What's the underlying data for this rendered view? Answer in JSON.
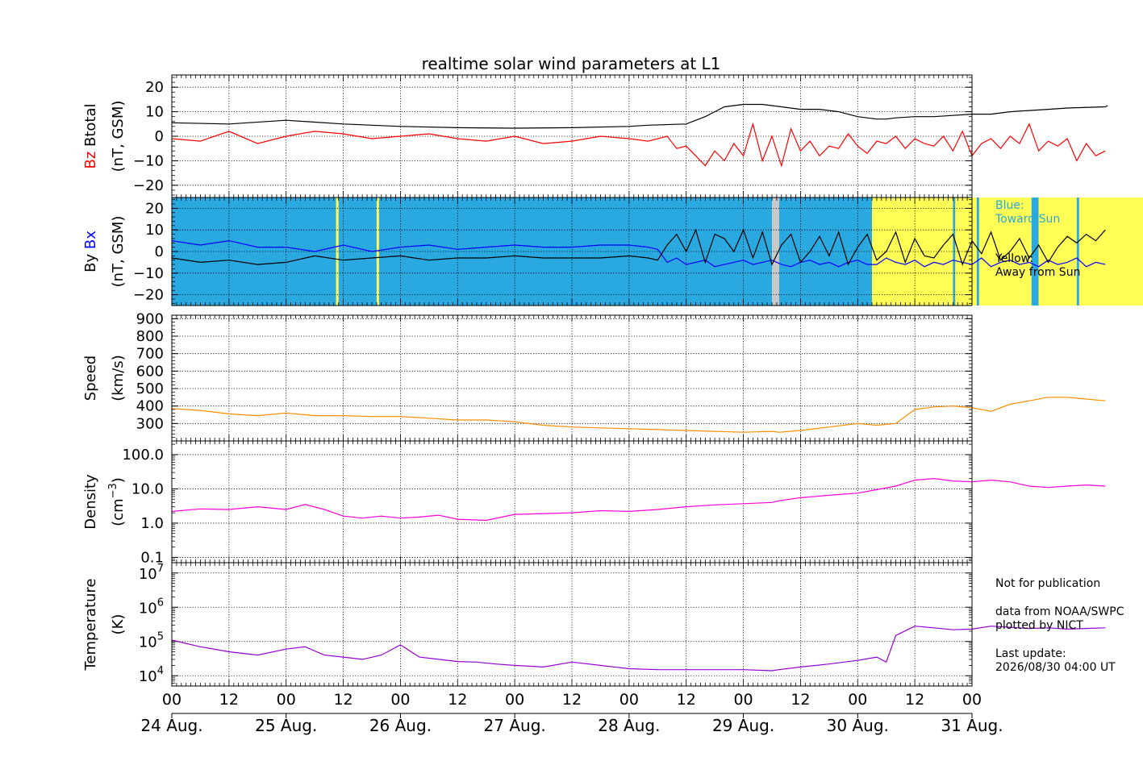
{
  "chart_data": {
    "type": "line",
    "title": "realtime solar wind parameters at L1",
    "time_axis": {
      "range": [
        "2026-08-24 00:00",
        "2026-08-31 00:00"
      ],
      "hour_tick_labels": [
        "00",
        "12",
        "00",
        "12",
        "00",
        "12",
        "00",
        "12",
        "00",
        "12",
        "00",
        "12",
        "00",
        "12",
        "00"
      ],
      "day_labels": [
        "24 Aug.",
        "25 Aug.",
        "26 Aug.",
        "27 Aug.",
        "28 Aug.",
        "29 Aug.",
        "30 Aug.",
        "31 Aug."
      ]
    },
    "panels": [
      {
        "ylabel_parts": [
          "Bz",
          "Btotal",
          "(nT, GSM)"
        ],
        "ylim": [
          -25,
          25
        ],
        "yticks": [
          -20,
          -10,
          0,
          10,
          20
        ],
        "grid": true,
        "series": [
          {
            "name": "Btotal",
            "color": "#000000",
            "x_hours": [
              0,
              12,
              24,
              36,
              48,
              60,
              72,
              84,
              96,
              100,
              108,
              112,
              116,
              120,
              124,
              128,
              132,
              136,
              140,
              144,
              148,
              150,
              152,
              156,
              160,
              164,
              168,
              172,
              176,
              180,
              184,
              188,
              196,
              196.5
            ],
            "values": [
              5.5,
              5,
              6.5,
              5,
              4,
              3.5,
              3.3,
              3.5,
              4,
              4.5,
              5,
              8,
              12,
              13,
              13,
              12,
              11,
              11,
              10,
              8,
              7,
              7,
              7.5,
              8,
              8,
              8.5,
              9,
              9,
              10,
              10.5,
              11,
              11.5,
              12,
              12.5
            ]
          },
          {
            "name": "Bz",
            "color": "#ff0000",
            "x_hours": [
              0,
              6,
              12,
              18,
              24,
              30,
              36,
              42,
              48,
              54,
              60,
              66,
              72,
              78,
              84,
              90,
              96,
              100,
              104,
              106,
              108,
              110,
              112,
              114,
              116,
              118,
              120,
              122,
              124,
              126,
              128,
              130,
              132,
              134,
              136,
              138,
              140,
              142,
              144,
              146,
              148,
              150,
              152,
              154,
              156,
              158,
              160,
              162,
              164,
              166,
              168,
              170,
              172,
              174,
              176,
              178,
              180,
              182,
              184,
              186,
              188,
              190,
              192,
              194,
              196
            ],
            "values": [
              -1,
              -2,
              2,
              -3,
              0,
              2,
              1,
              -1,
              0,
              1,
              -1,
              -2,
              0,
              -3,
              -2,
              0,
              -1,
              -2,
              0,
              -5,
              -4,
              -8,
              -12,
              -6,
              -10,
              -3,
              -8,
              5,
              -10,
              0,
              -12,
              3,
              -6,
              -2,
              -8,
              -4,
              -5,
              1,
              -4,
              -7,
              -2,
              -3,
              0,
              -5,
              -1,
              -3,
              -4,
              0,
              -6,
              2,
              -8,
              -3,
              -1,
              -5,
              0,
              -3,
              5,
              -6,
              -2,
              -4,
              -1,
              -10,
              -3,
              -8,
              -6
            ]
          }
        ]
      },
      {
        "ylabel_parts": [
          "By",
          "Bx",
          "(nT, GSM)"
        ],
        "ylim": [
          -25,
          25
        ],
        "yticks": [
          -20,
          -10,
          0,
          10,
          20
        ],
        "grid": true,
        "background_sectors": [
          {
            "from_hour": 0,
            "to_hour": 34.5,
            "polarity": "toward",
            "color": "#2aa8e0"
          },
          {
            "from_hour": 34.5,
            "to_hour": 35,
            "polarity": "away",
            "color": "#ffff55"
          },
          {
            "from_hour": 35,
            "to_hour": 43,
            "polarity": "toward",
            "color": "#2aa8e0"
          },
          {
            "from_hour": 43,
            "to_hour": 43.5,
            "polarity": "away",
            "color": "#ffff55"
          },
          {
            "from_hour": 43.5,
            "to_hour": 126,
            "polarity": "toward",
            "color": "#2aa8e0"
          },
          {
            "from_hour": 126,
            "to_hour": 127.5,
            "polarity": "gap",
            "color": "#c8c8c8"
          },
          {
            "from_hour": 127.5,
            "to_hour": 147,
            "polarity": "toward",
            "color": "#2aa8e0"
          },
          {
            "from_hour": 147,
            "to_hour": 164,
            "polarity": "away",
            "color": "#ffff55"
          },
          {
            "from_hour": 164,
            "to_hour": 164.5,
            "polarity": "toward",
            "color": "#2aa8e0"
          },
          {
            "from_hour": 164.5,
            "to_hour": 169,
            "polarity": "away",
            "color": "#ffff55"
          },
          {
            "from_hour": 169,
            "to_hour": 169.5,
            "polarity": "toward",
            "color": "#2aa8e0"
          },
          {
            "from_hour": 169.5,
            "to_hour": 180.5,
            "polarity": "away",
            "color": "#ffff55"
          },
          {
            "from_hour": 180.5,
            "to_hour": 182,
            "polarity": "toward",
            "color": "#2aa8e0"
          },
          {
            "from_hour": 182,
            "to_hour": 190,
            "polarity": "away",
            "color": "#ffff55"
          },
          {
            "from_hour": 190,
            "to_hour": 190.5,
            "polarity": "toward",
            "color": "#2aa8e0"
          },
          {
            "from_hour": 190.5,
            "to_hour": 208,
            "polarity": "away",
            "color": "#ffff55"
          },
          {
            "from_hour": 208,
            "to_hour": 208.5,
            "polarity": "gap",
            "color": "#c8c8c8"
          }
        ],
        "series": [
          {
            "name": "Bx",
            "color": "#0000ff",
            "x_hours": [
              0,
              6,
              12,
              18,
              24,
              30,
              36,
              42,
              48,
              54,
              60,
              66,
              72,
              78,
              84,
              90,
              96,
              100,
              102,
              104,
              106,
              108,
              110,
              112,
              114,
              116,
              118,
              120,
              122,
              124,
              126,
              128,
              130,
              132,
              134,
              136,
              138,
              140,
              142,
              144,
              146,
              148,
              150,
              152,
              154,
              156,
              158,
              160,
              162,
              164,
              166,
              168,
              170,
              172,
              174,
              176,
              178,
              180,
              182,
              184,
              186,
              188,
              190,
              192,
              194,
              196
            ],
            "values": [
              5,
              3,
              5,
              2,
              2,
              0,
              3,
              0,
              2,
              3,
              1,
              2,
              3,
              2,
              2,
              3,
              3,
              2,
              1,
              -5,
              -3,
              -6,
              -5,
              -4,
              -7,
              -6,
              -5,
              -4,
              -6,
              -5,
              -4,
              -6,
              -7,
              -5,
              -4,
              -6,
              -5,
              -7,
              -5,
              -4,
              -6,
              -6,
              -3,
              -5,
              -6,
              -4,
              -7,
              -5,
              -6,
              -4,
              -5,
              -6,
              -3,
              -7,
              -5,
              -4,
              -6,
              -5,
              -7,
              -4,
              -6,
              -5,
              -3,
              -7,
              -5,
              -6
            ]
          },
          {
            "name": "By",
            "color": "#000000",
            "x_hours": [
              0,
              6,
              12,
              18,
              24,
              30,
              36,
              42,
              48,
              54,
              60,
              66,
              72,
              78,
              84,
              90,
              96,
              100,
              102,
              104,
              106,
              108,
              110,
              112,
              114,
              116,
              118,
              120,
              122,
              124,
              126,
              128,
              130,
              132,
              134,
              136,
              138,
              140,
              142,
              144,
              146,
              148,
              150,
              152,
              154,
              156,
              158,
              160,
              162,
              164,
              166,
              168,
              170,
              172,
              174,
              176,
              178,
              180,
              182,
              184,
              186,
              188,
              190,
              192,
              194,
              196
            ],
            "values": [
              -3,
              -5,
              -4,
              -6,
              -5,
              -2,
              -4,
              -3,
              -2,
              -4,
              -3,
              -3,
              -2,
              -3,
              -3,
              -3,
              -2,
              -3,
              -4,
              3,
              8,
              0,
              10,
              -5,
              8,
              6,
              0,
              10,
              -3,
              9,
              -6,
              3,
              8,
              -5,
              0,
              7,
              -2,
              9,
              -6,
              2,
              8,
              -4,
              0,
              9,
              -5,
              6,
              -2,
              -3,
              3,
              8,
              -6,
              5,
              -1,
              9,
              -4,
              0,
              6,
              -3,
              3,
              -5,
              2,
              7,
              4,
              8,
              5,
              10
            ]
          }
        ]
      },
      {
        "ylabel_parts": [
          "Speed",
          "(km/s)"
        ],
        "ylim": [
          200,
          920
        ],
        "yticks": [
          300,
          400,
          500,
          600,
          700,
          800,
          900
        ],
        "grid": true,
        "series": [
          {
            "name": "Speed",
            "color": "#ff8c00",
            "x_hours": [
              0,
              6,
              12,
              18,
              24,
              30,
              36,
              42,
              48,
              54,
              60,
              66,
              72,
              78,
              84,
              90,
              96,
              102,
              108,
              114,
              120,
              126,
              127.5,
              132,
              138,
              144,
              148,
              152,
              156,
              160,
              164,
              168,
              172,
              176,
              180,
              184,
              188,
              192,
              196
            ],
            "values": [
              385,
              375,
              355,
              345,
              360,
              345,
              345,
              340,
              340,
              330,
              320,
              320,
              310,
              290,
              280,
              275,
              270,
              265,
              260,
              255,
              250,
              255,
              250,
              260,
              280,
              300,
              290,
              300,
              380,
              395,
              400,
              390,
              370,
              410,
              430,
              450,
              450,
              440,
              430
            ]
          }
        ]
      },
      {
        "ylabel_parts": [
          "Density",
          "(cm",
          "−3",
          ")"
        ],
        "scale": "log",
        "ylim": [
          0.07,
          250
        ],
        "yticks": [
          0.1,
          1.0,
          10.0,
          100.0
        ],
        "ytick_labels": [
          "0.1",
          "1.0",
          "10.0",
          "100.0"
        ],
        "grid": true,
        "series": [
          {
            "name": "Density",
            "color": "#ff00dd",
            "x_hours": [
              0,
              6,
              12,
              18,
              24,
              28,
              32,
              36,
              40,
              44,
              48,
              52,
              56,
              60,
              66,
              72,
              78,
              84,
              90,
              96,
              102,
              108,
              114,
              120,
              126,
              127.5,
              132,
              138,
              144,
              148,
              152,
              156,
              160,
              164,
              168,
              172,
              176,
              180,
              184,
              188,
              192,
              196
            ],
            "values": [
              2.2,
              2.6,
              2.5,
              3,
              2.5,
              3.5,
              2.5,
              1.6,
              1.4,
              1.6,
              1.4,
              1.5,
              1.7,
              1.3,
              1.2,
              1.8,
              1.9,
              2.0,
              2.3,
              2.2,
              2.5,
              3.0,
              3.4,
              3.7,
              4.0,
              4.5,
              5.5,
              6.5,
              7.5,
              9.5,
              12,
              18,
              20,
              17,
              16,
              18,
              16,
              12,
              11,
              12,
              13,
              12
            ]
          }
        ]
      },
      {
        "ylabel_parts": [
          "Temperature",
          "(K)"
        ],
        "scale": "log",
        "ylim": [
          5000,
          20000000
        ],
        "yticks": [
          10000,
          100000,
          1000000,
          10000000
        ],
        "ytick_labels": [
          "10",
          "10",
          "10",
          "10"
        ],
        "ytick_exponents": [
          "4",
          "5",
          "6",
          "7"
        ],
        "grid": true,
        "series": [
          {
            "name": "Temperature",
            "color": "#9400d3",
            "x_hours": [
              0,
              6,
              12,
              18,
              24,
              28,
              32,
              36,
              40,
              44,
              48,
              52,
              56,
              60,
              64,
              68,
              72,
              78,
              84,
              90,
              96,
              102,
              108,
              114,
              120,
              126,
              127.5,
              132,
              138,
              144,
              148,
              150,
              152,
              156,
              160,
              164,
              168,
              172,
              176,
              180,
              184,
              188,
              192,
              196
            ],
            "values": [
              110000.0,
              70000.0,
              50000.0,
              40000.0,
              60000.0,
              70000.0,
              40000.0,
              35000.0,
              30000.0,
              40000.0,
              80000.0,
              35000.0,
              30000.0,
              26000.0,
              25000.0,
              22000.0,
              20000.0,
              18000.0,
              25000.0,
              20000.0,
              16000.0,
              15000.0,
              15000.0,
              15000.0,
              15000.0,
              14000.0,
              15000.0,
              18000.0,
              22000.0,
              28000.0,
              35000.0,
              25000.0,
              150000.0,
              280000.0,
              250000.0,
              220000.0,
              230000.0,
              280000.0,
              260000.0,
              240000.0,
              250000.0,
              230000.0,
              240000.0,
              250000.0
            ]
          }
        ]
      }
    ]
  },
  "legend": {
    "blue_label": "Blue:",
    "blue_desc": "Toward Sun",
    "yellow_label": "Yellow:",
    "yellow_desc": "Away from Sun"
  },
  "footer": {
    "not_for_publication": "Not for publication",
    "data_from": "data from NOAA/SWPC",
    "plotted_by": "plotted by NICT",
    "last_update_label": "Last update:",
    "last_update_value": "2026/08/30 04:00 UT"
  }
}
